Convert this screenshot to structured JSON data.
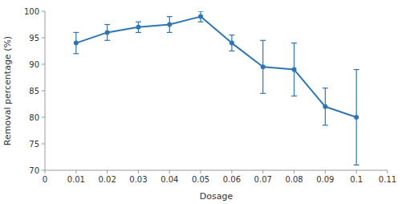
{
  "chart_data": {
    "type": "line",
    "xlabel": "Dosage",
    "ylabel": "Removal percentage (%)",
    "x": [
      0.01,
      0.02,
      0.03,
      0.04,
      0.05,
      0.06,
      0.07,
      0.08,
      0.09,
      0.1
    ],
    "values": [
      94.0,
      96.0,
      97.0,
      97.5,
      99.0,
      94.0,
      89.5,
      89.0,
      82.0,
      80.0
    ],
    "errors": [
      2.0,
      1.5,
      1.0,
      1.5,
      1.0,
      1.5,
      5.0,
      5.0,
      3.5,
      9.0
    ],
    "color": "#2E75B6",
    "marker": "circle",
    "xlim": [
      0,
      0.11
    ],
    "ylim": [
      70,
      100
    ],
    "xticks": [
      0,
      0.01,
      0.02,
      0.03,
      0.04,
      0.05,
      0.06,
      0.07,
      0.08,
      0.09,
      0.1,
      0.11
    ],
    "yticks": [
      70,
      75,
      80,
      85,
      90,
      95,
      100
    ],
    "grid": false
  }
}
